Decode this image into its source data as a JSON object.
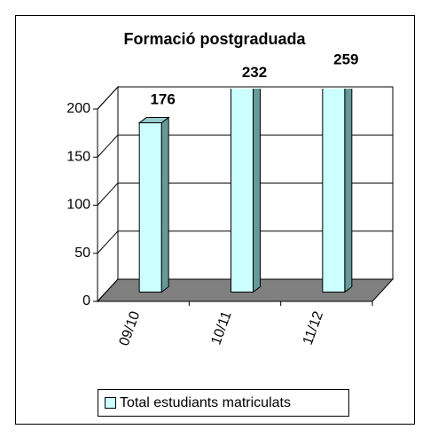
{
  "chart_data": {
    "type": "bar3d",
    "title": "Formació postgraduada",
    "categories": [
      "09/10",
      "10/11",
      "11/12"
    ],
    "series": [
      {
        "name": "Total estudiants matriculats",
        "color": "#ccffff",
        "values": [
          176,
          232,
          259
        ]
      }
    ],
    "ylim": [
      0,
      200
    ],
    "yticks": [
      0,
      50,
      100,
      150,
      200
    ],
    "grid": true,
    "legend": "bottom"
  }
}
